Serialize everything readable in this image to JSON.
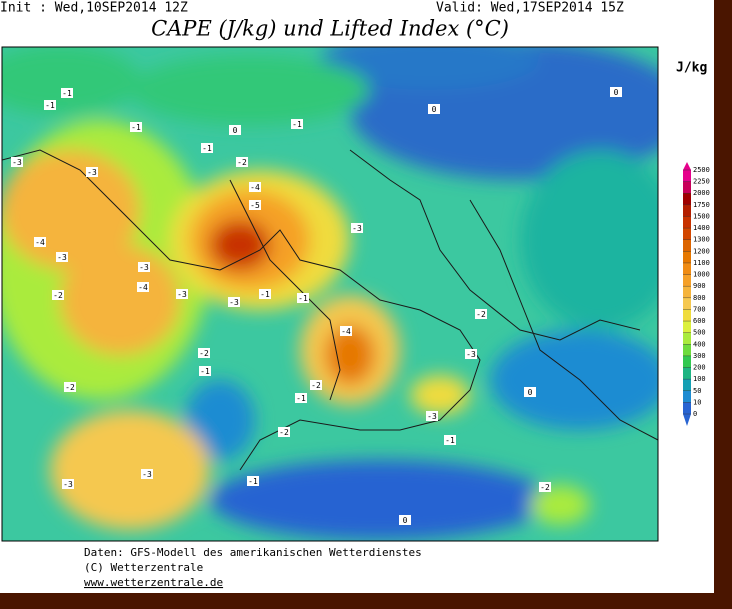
{
  "header": {
    "init": "Init : Wed,10SEP2014 12Z",
    "valid": "Valid: Wed,17SEP2014 15Z",
    "title": "CAPE (J/kg) und Lifted Index (°C)"
  },
  "legend": {
    "unit": "J/kg",
    "levels": [
      2500,
      2250,
      2000,
      1750,
      1500,
      1400,
      1300,
      1200,
      1100,
      1000,
      900,
      800,
      700,
      600,
      500,
      400,
      300,
      200,
      100,
      50,
      10,
      0
    ],
    "colors": [
      "#e6008c",
      "#c8005a",
      "#a00000",
      "#b41e00",
      "#c83200",
      "#d24600",
      "#dc6400",
      "#e67800",
      "#f08c14",
      "#f5a028",
      "#f5b43c",
      "#f5c850",
      "#f0dc3c",
      "#dcf03c",
      "#aaeb3c",
      "#6edc3c",
      "#32c850",
      "#1eb482",
      "#14a0b4",
      "#1e8cd2",
      "#2864d2"
    ]
  },
  "map": {
    "lifted_index_labels": [
      "-1",
      "-1",
      "-1",
      "-1",
      "-1",
      "-2",
      "-3",
      "-3",
      "-4",
      "-5",
      "-3",
      "-4",
      "-3",
      "-3",
      "-4",
      "-2",
      "-3",
      "-3",
      "-1",
      "-1",
      "-4",
      "-2",
      "-2",
      "-3",
      "-1",
      "-2",
      "-1",
      "-2",
      "-3",
      "0",
      "-2",
      "-1",
      "-3",
      "-3",
      "-2",
      "0",
      "-1",
      "0",
      "0",
      "0"
    ]
  },
  "footer": {
    "line1": "Daten: GFS-Modell des amerikanischen Wetterdienstes",
    "line2": "(C) Wetterzentrale",
    "line3": "www.wetterzentrale.de"
  }
}
